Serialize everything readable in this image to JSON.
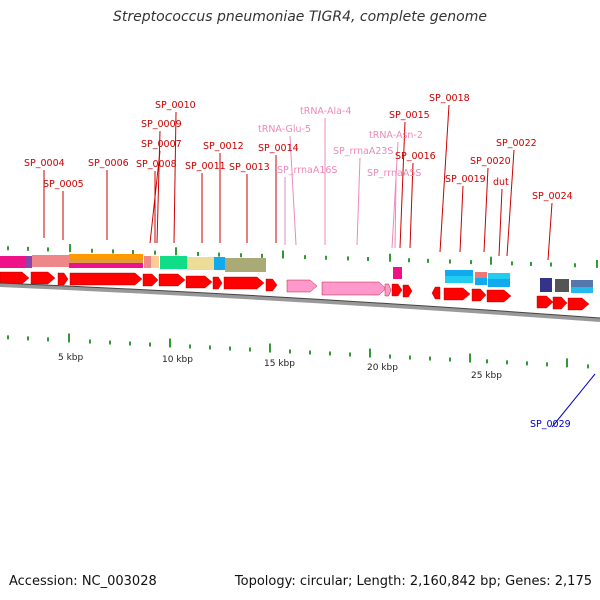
{
  "title": "Streptococcus pneumoniae TIGR4, complete genome",
  "footer": {
    "accession": "Accession: NC_003028",
    "meta": "Topology: circular; Length: 2,160,842 bp; Genes: 2,175"
  },
  "colors": {
    "gene": "#ff0000",
    "rna": "#ff99cc",
    "label_gene": "#cc0000",
    "label_rna": "#ee88bb",
    "label_other": "#0000cc",
    "tick": "#339933",
    "axis": "#888888"
  },
  "scale": [
    "5 kbp",
    "10 kbp",
    "15 kbp",
    "20 kbp",
    "25 kbp"
  ],
  "labels": [
    {
      "text": "SP_0004",
      "kind": "gene"
    },
    {
      "text": "SP_0005",
      "kind": "gene"
    },
    {
      "text": "SP_0006",
      "kind": "gene"
    },
    {
      "text": "SP_0007",
      "kind": "gene"
    },
    {
      "text": "SP_0008",
      "kind": "gene"
    },
    {
      "text": "SP_0009",
      "kind": "gene"
    },
    {
      "text": "SP_0010",
      "kind": "gene"
    },
    {
      "text": "SP_0011",
      "kind": "gene"
    },
    {
      "text": "SP_0012",
      "kind": "gene"
    },
    {
      "text": "SP_0013",
      "kind": "gene"
    },
    {
      "text": "SP_0014",
      "kind": "gene"
    },
    {
      "text": "SP_rrnaA16S",
      "kind": "rna"
    },
    {
      "text": "tRNA-Glu-5",
      "kind": "rna"
    },
    {
      "text": "tRNA-Ala-4",
      "kind": "rna"
    },
    {
      "text": "SP_rrnaA23S",
      "kind": "rna"
    },
    {
      "text": "tRNA-Asn-2",
      "kind": "rna"
    },
    {
      "text": "SP_rrnaA5S",
      "kind": "rna"
    },
    {
      "text": "SP_0015",
      "kind": "gene"
    },
    {
      "text": "SP_0016",
      "kind": "gene"
    },
    {
      "text": "SP_0018",
      "kind": "gene"
    },
    {
      "text": "SP_0019",
      "kind": "gene"
    },
    {
      "text": "SP_0020",
      "kind": "gene"
    },
    {
      "text": "dut",
      "kind": "gene"
    },
    {
      "text": "SP_0022",
      "kind": "gene"
    },
    {
      "text": "SP_0024",
      "kind": "gene"
    },
    {
      "text": "SP_0029",
      "kind": "other"
    }
  ]
}
